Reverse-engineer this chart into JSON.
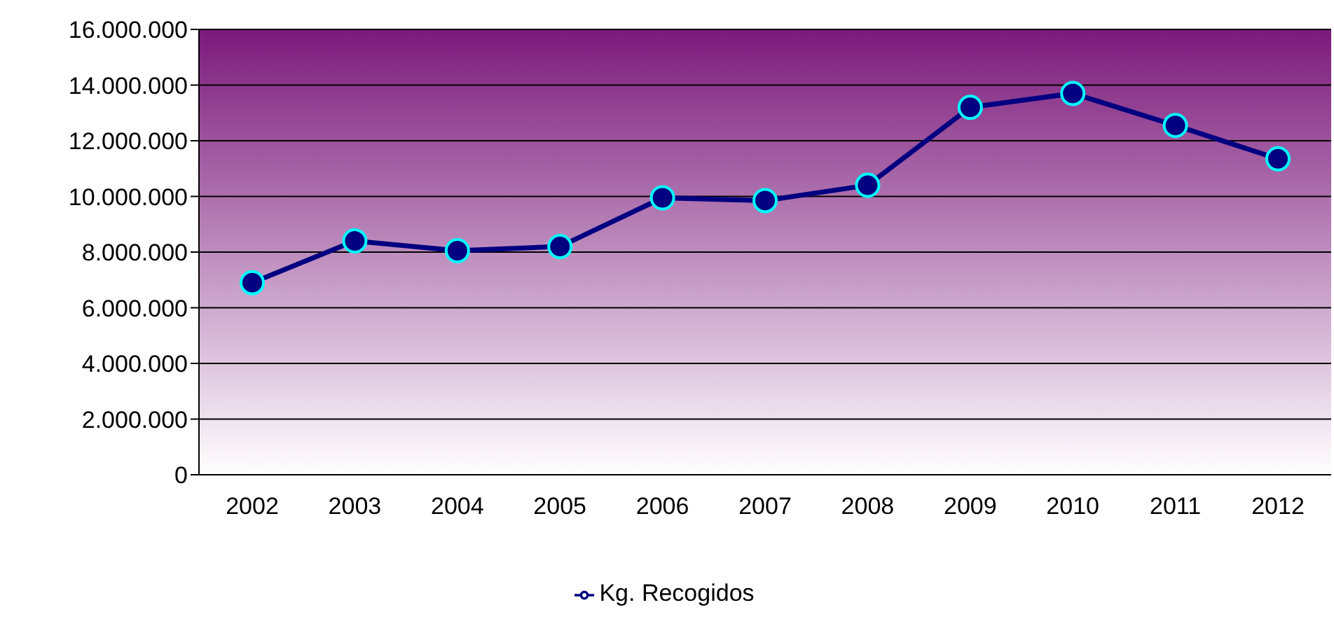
{
  "chart_data": {
    "type": "line",
    "categories": [
      "2002",
      "2003",
      "2004",
      "2005",
      "2006",
      "2007",
      "2008",
      "2009",
      "2010",
      "2011",
      "2012"
    ],
    "series": [
      {
        "name": "Kg. Recogidos",
        "color": "#000080",
        "values": [
          6900000,
          8400000,
          8050000,
          8200000,
          9950000,
          9850000,
          10400000,
          13200000,
          13700000,
          12550000,
          11350000
        ]
      }
    ],
    "ylim": [
      0,
      16000000
    ],
    "yticks": [
      {
        "value": 0,
        "label": "0"
      },
      {
        "value": 2000000,
        "label": "2.000.000"
      },
      {
        "value": 4000000,
        "label": "4.000.000"
      },
      {
        "value": 6000000,
        "label": "6.000.000"
      },
      {
        "value": 8000000,
        "label": "8.000.000"
      },
      {
        "value": 10000000,
        "label": "10.000.000"
      },
      {
        "value": 12000000,
        "label": "12.000.000"
      },
      {
        "value": 14000000,
        "label": "14.000.000"
      },
      {
        "value": 16000000,
        "label": "16.000.000"
      }
    ],
    "grid": "y",
    "legend": "bottom",
    "marker": "circle",
    "line_style": "solid"
  }
}
